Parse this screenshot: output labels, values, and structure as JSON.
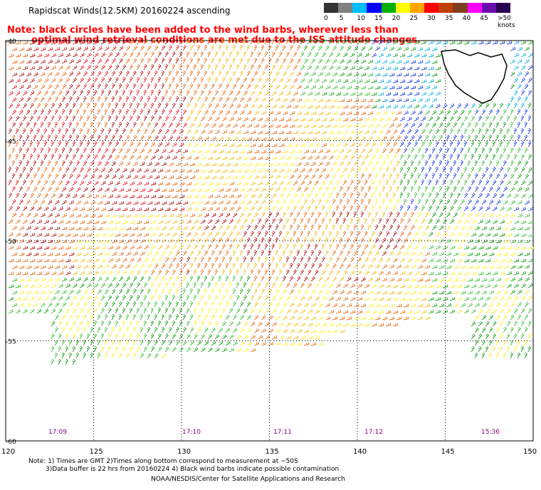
{
  "title": "Rapidscat Winds(12.5KM) 20160224 ascending",
  "note": {
    "line1": "Note: black circles have been added to the wind barbs, wherever less than",
    "line2": "optimal wind retrieval conditions are met due to the ISS attitude changes."
  },
  "legend": {
    "labels": [
      "0",
      "5",
      "10",
      "15",
      "20",
      "25",
      "30",
      "35",
      "40",
      "45",
      ">50 knots"
    ],
    "colors": [
      "#333333",
      "#808080",
      "#00bfff",
      "#0000ff",
      "#00b000",
      "#ffff00",
      "#ffa500",
      "#ff0000",
      "#c04000",
      "#7f3f1f",
      "#ff00ff",
      "#6a0dad",
      "#2a0050"
    ]
  },
  "map": {
    "lon_ticks": [
      "120",
      "125",
      "130",
      "135",
      "140",
      "145",
      "150"
    ],
    "lat_ticks": [
      "-40",
      "-45",
      "-50",
      "-55",
      "-60"
    ],
    "times": [
      "17:09",
      "17:10",
      "17:11",
      "17:12",
      "15:36"
    ],
    "time_color": "#8b008b"
  },
  "footer": {
    "line1": "Note: 1) Times are GMT 2)Times along bottom correspond to measurement at ~50S",
    "line2": "3)Data buffer is 22 hrs from 20160224 4) Black wind barbs indicate possible contamination",
    "line3": "NOAA/NESDIS/Center for Satellite Applications and Research"
  }
}
